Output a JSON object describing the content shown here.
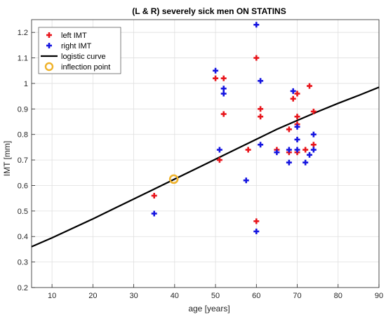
{
  "chart_data": {
    "type": "scatter",
    "title": "(L & R) severely sick men ON STATINS",
    "xlabel": "age [years]",
    "ylabel": "IMT [mm]",
    "xlim": [
      5,
      90
    ],
    "ylim": [
      0.2,
      1.25
    ],
    "xticks": [
      "10",
      "20",
      "30",
      "40",
      "50",
      "60",
      "70",
      "80",
      "90"
    ],
    "yticks": [
      "0.2",
      "0.3",
      "0.4",
      "0.5",
      "0.6",
      "0.7",
      "0.8",
      "0.9",
      "1",
      "1.1",
      "1.2"
    ],
    "grid": true,
    "legend_position": "top-left",
    "series": [
      {
        "name": "left IMT",
        "color": "#e8151b",
        "marker": "plus",
        "x": [
          35,
          50,
          51,
          52,
          52,
          58,
          60,
          60,
          61,
          61,
          65,
          68,
          68,
          69,
          70,
          70,
          70,
          70,
          72,
          73,
          74,
          74
        ],
        "y": [
          0.56,
          1.02,
          0.7,
          1.02,
          0.88,
          0.74,
          1.1,
          0.46,
          0.9,
          0.87,
          0.74,
          0.82,
          0.73,
          0.94,
          0.96,
          0.87,
          0.84,
          0.73,
          0.74,
          0.99,
          0.89,
          0.76
        ]
      },
      {
        "name": "right IMT",
        "color": "#1515e0",
        "marker": "plus",
        "x": [
          35,
          50,
          51,
          52,
          52,
          57.5,
          60,
          60,
          61,
          61,
          65,
          68,
          68,
          69,
          70,
          70,
          70,
          72,
          73,
          74,
          74
        ],
        "y": [
          0.49,
          1.05,
          0.74,
          0.98,
          0.96,
          0.62,
          1.23,
          0.42,
          1.01,
          0.76,
          0.73,
          0.74,
          0.69,
          0.97,
          0.83,
          0.78,
          0.74,
          0.69,
          0.72,
          0.8,
          0.74
        ]
      },
      {
        "name": "logistic curve",
        "color": "#000000",
        "marker": "line",
        "x": [
          5,
          10,
          15,
          20,
          25,
          30,
          35,
          40,
          45,
          50,
          55,
          60,
          65,
          70,
          75,
          80,
          85,
          90
        ],
        "y": [
          0.36,
          0.395,
          0.432,
          0.469,
          0.508,
          0.547,
          0.586,
          0.625,
          0.664,
          0.703,
          0.742,
          0.781,
          0.82,
          0.855,
          0.889,
          0.922,
          0.953,
          0.985
        ]
      },
      {
        "name": "inflection point",
        "color": "#efb22a",
        "marker": "circle",
        "x": [
          39.8
        ],
        "y": [
          0.625
        ]
      }
    ]
  }
}
